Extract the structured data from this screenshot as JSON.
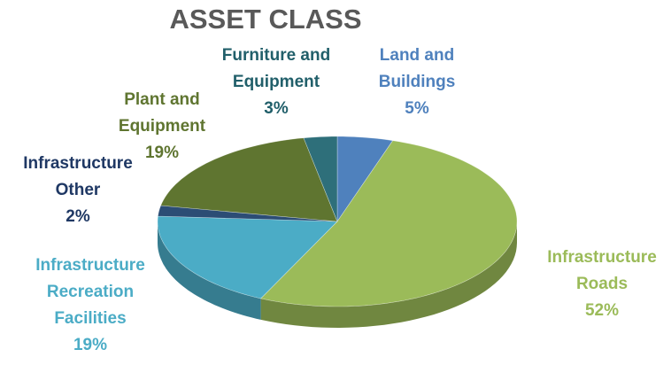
{
  "chart_data": {
    "type": "pie3d",
    "title": "ASSET CLASS",
    "categories": [
      "Land and Buildings",
      "Infrastructure Roads",
      "Infrastructure Recreation Facilities",
      "Infrastructure Other",
      "Plant and Equipment",
      "Furniture and Equipment"
    ],
    "values": [
      5,
      52,
      19,
      2,
      19,
      3
    ],
    "value_labels": [
      "5%",
      "52%",
      "19%",
      "2%",
      "19%",
      "3%"
    ],
    "colors": [
      "#4f81bd",
      "#9bbb59",
      "#4bacc6",
      "#2c4d75",
      "#5f7530",
      "#2e6f7a"
    ]
  }
}
